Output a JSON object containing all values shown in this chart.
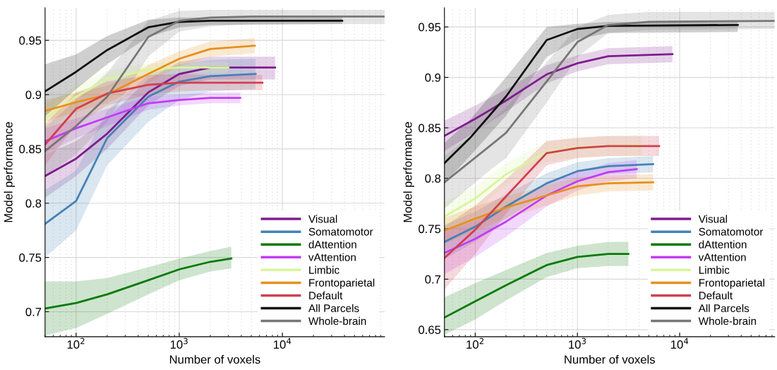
{
  "chart_data": [
    {
      "type": "line",
      "xlabel": "Number of voxels",
      "ylabel": "Model performance",
      "log": "x",
      "grid": true,
      "legend": "bottom right",
      "xlim": [
        50,
        98000
      ],
      "xticks": [
        {
          "value": 100,
          "label": "10$^{2}$"
        },
        {
          "value": 1000,
          "label": "10$^{3}$"
        },
        {
          "value": 10000,
          "label": "10$^{4}$"
        }
      ],
      "ylim": [
        0.677,
        0.98
      ],
      "yticks": [
        0.7,
        0.75,
        0.8,
        0.85,
        0.9,
        0.95
      ],
      "series": [
        {
          "name": "Visual",
          "color": "#7e1e8c",
          "x": [
            50,
            100,
            200,
            500,
            1000,
            2000,
            8500
          ],
          "values": [
            0.825,
            0.841,
            0.864,
            0.902,
            0.919,
            0.925,
            0.925
          ],
          "lower": [
            0.805,
            0.825,
            0.85,
            0.89,
            0.908,
            0.914,
            0.914
          ],
          "upper": [
            0.845,
            0.857,
            0.878,
            0.914,
            0.93,
            0.935,
            0.935
          ]
        },
        {
          "name": "Somatomotor",
          "color": "#4682b4",
          "x": [
            50,
            100,
            200,
            500,
            1000,
            2000,
            5500
          ],
          "values": [
            0.781,
            0.802,
            0.86,
            0.898,
            0.912,
            0.917,
            0.919
          ],
          "lower": [
            0.75,
            0.775,
            0.835,
            0.875,
            0.895,
            0.903,
            0.905
          ],
          "upper": [
            0.812,
            0.83,
            0.885,
            0.918,
            0.928,
            0.932,
            0.933
          ]
        },
        {
          "name": "dAttention",
          "color": "#0a7a0a",
          "x": [
            50,
            100,
            200,
            500,
            1000,
            2000,
            3200
          ],
          "values": [
            0.703,
            0.708,
            0.716,
            0.729,
            0.739,
            0.746,
            0.749
          ],
          "lower": [
            0.678,
            0.685,
            0.698,
            0.716,
            0.729,
            0.737,
            0.74
          ],
          "upper": [
            0.728,
            0.728,
            0.731,
            0.741,
            0.749,
            0.756,
            0.76
          ]
        },
        {
          "name": "vAttention",
          "color": "#c13cf6",
          "x": [
            50,
            100,
            200,
            500,
            1000,
            2000,
            3900
          ],
          "values": [
            0.857,
            0.869,
            0.879,
            0.892,
            0.895,
            0.897,
            0.897
          ],
          "lower": [
            0.845,
            0.86,
            0.871,
            0.886,
            0.89,
            0.892,
            0.892
          ],
          "upper": [
            0.869,
            0.878,
            0.887,
            0.898,
            0.9,
            0.902,
            0.902
          ]
        },
        {
          "name": "Limbic",
          "color": "#d9f59a",
          "x": [
            50,
            100,
            200,
            500,
            1000,
            3000
          ],
          "values": [
            0.878,
            0.898,
            0.914,
            0.923,
            0.925,
            0.925
          ],
          "lower": [
            0.865,
            0.888,
            0.906,
            0.917,
            0.92,
            0.92
          ],
          "upper": [
            0.891,
            0.908,
            0.922,
            0.929,
            0.93,
            0.93
          ]
        },
        {
          "name": "Frontoparietal",
          "color": "#e6901e",
          "x": [
            50,
            100,
            200,
            500,
            1000,
            2000,
            5400
          ],
          "values": [
            0.885,
            0.893,
            0.9,
            0.919,
            0.933,
            0.942,
            0.945
          ],
          "lower": [
            0.875,
            0.884,
            0.892,
            0.911,
            0.926,
            0.935,
            0.938
          ],
          "upper": [
            0.895,
            0.902,
            0.908,
            0.927,
            0.94,
            0.949,
            0.952
          ]
        },
        {
          "name": "Default",
          "color": "#d04050",
          "x": [
            50,
            100,
            200,
            500,
            1000,
            2000,
            6400
          ],
          "values": [
            0.854,
            0.887,
            0.901,
            0.909,
            0.911,
            0.911,
            0.911
          ],
          "lower": [
            0.835,
            0.872,
            0.89,
            0.9,
            0.903,
            0.904,
            0.904
          ],
          "upper": [
            0.873,
            0.902,
            0.912,
            0.918,
            0.919,
            0.918,
            0.918
          ]
        },
        {
          "name": "All Parcels",
          "color": "#111111",
          "x": [
            50,
            100,
            200,
            500,
            1000,
            2000,
            38000
          ],
          "values": [
            0.903,
            0.921,
            0.941,
            0.962,
            0.967,
            0.968,
            0.968
          ],
          "lower": [
            0.88,
            0.905,
            0.928,
            0.953,
            0.962,
            0.964,
            0.965
          ],
          "upper": [
            0.928,
            0.937,
            0.954,
            0.969,
            0.971,
            0.971,
            0.971
          ]
        },
        {
          "name": "Whole-brain",
          "color": "#777777",
          "x": [
            50,
            100,
            200,
            500,
            1000,
            2000,
            5000,
            98000
          ],
          "values": [
            0.848,
            0.871,
            0.898,
            0.953,
            0.968,
            0.971,
            0.972,
            0.972
          ],
          "lower": [
            0.825,
            0.845,
            0.875,
            0.935,
            0.958,
            0.963,
            0.965,
            0.965
          ],
          "upper": [
            0.87,
            0.895,
            0.92,
            0.968,
            0.977,
            0.978,
            0.978,
            0.978
          ]
        }
      ]
    },
    {
      "type": "line",
      "xlabel": "Number of voxels",
      "ylabel": "Model performance",
      "log": "x",
      "grid": true,
      "legend": "bottom right",
      "xlim": [
        50,
        85000
      ],
      "xticks": [
        {
          "value": 100,
          "label": "10$^{2}$"
        },
        {
          "value": 1000,
          "label": "10$^{3}$"
        },
        {
          "value": 10000,
          "label": "10$^{4}$"
        }
      ],
      "ylim": [
        0.643,
        0.969
      ],
      "yticks": [
        0.65,
        0.7,
        0.75,
        0.8,
        0.85,
        0.9,
        0.95
      ],
      "series": [
        {
          "name": "Visual",
          "color": "#7e1e8c",
          "x": [
            50,
            100,
            200,
            500,
            1000,
            2000,
            8500
          ],
          "values": [
            0.842,
            0.859,
            0.877,
            0.903,
            0.914,
            0.921,
            0.923
          ],
          "lower": [
            0.827,
            0.846,
            0.866,
            0.894,
            0.906,
            0.913,
            0.915
          ],
          "upper": [
            0.857,
            0.872,
            0.888,
            0.912,
            0.922,
            0.929,
            0.931
          ]
        },
        {
          "name": "Somatomotor",
          "color": "#4682b4",
          "x": [
            50,
            100,
            200,
            500,
            1000,
            2000,
            5500
          ],
          "values": [
            0.737,
            0.752,
            0.772,
            0.795,
            0.807,
            0.812,
            0.814
          ],
          "lower": [
            0.72,
            0.737,
            0.76,
            0.785,
            0.798,
            0.804,
            0.806
          ],
          "upper": [
            0.754,
            0.767,
            0.784,
            0.805,
            0.816,
            0.82,
            0.822
          ]
        },
        {
          "name": "dAttention",
          "color": "#0a7a0a",
          "x": [
            50,
            100,
            200,
            500,
            1000,
            2000,
            3150
          ],
          "values": [
            0.662,
            0.678,
            0.694,
            0.714,
            0.722,
            0.725,
            0.725
          ],
          "lower": [
            0.645,
            0.66,
            0.679,
            0.702,
            0.711,
            0.713,
            0.713
          ],
          "upper": [
            0.682,
            0.696,
            0.709,
            0.726,
            0.733,
            0.737,
            0.737
          ]
        },
        {
          "name": "vAttention",
          "color": "#c13cf6",
          "x": [
            50,
            100,
            200,
            500,
            1000,
            2000,
            3800
          ],
          "values": [
            0.726,
            0.74,
            0.757,
            0.783,
            0.797,
            0.806,
            0.809
          ],
          "lower": [
            0.705,
            0.722,
            0.742,
            0.772,
            0.788,
            0.797,
            0.8
          ],
          "upper": [
            0.747,
            0.758,
            0.772,
            0.794,
            0.806,
            0.815,
            0.818
          ]
        },
        {
          "name": "Limbic",
          "color": "#d9f59a",
          "x": [
            50,
            100,
            200,
            500,
            1000,
            4300
          ],
          "values": [
            0.762,
            0.78,
            0.804,
            0.826,
            0.831,
            0.833
          ],
          "lower": [
            0.748,
            0.768,
            0.793,
            0.816,
            0.821,
            0.823
          ],
          "upper": [
            0.776,
            0.792,
            0.815,
            0.836,
            0.841,
            0.843
          ]
        },
        {
          "name": "Frontoparietal",
          "color": "#e6901e",
          "x": [
            50,
            100,
            200,
            500,
            1000,
            2000,
            5500
          ],
          "values": [
            0.748,
            0.76,
            0.771,
            0.783,
            0.792,
            0.795,
            0.796
          ],
          "lower": [
            0.735,
            0.748,
            0.76,
            0.773,
            0.783,
            0.787,
            0.788
          ],
          "upper": [
            0.761,
            0.772,
            0.782,
            0.793,
            0.801,
            0.803,
            0.804
          ]
        },
        {
          "name": "Default",
          "color": "#d04050",
          "x": [
            50,
            100,
            200,
            500,
            1000,
            2000,
            6300
          ],
          "values": [
            0.721,
            0.749,
            0.782,
            0.825,
            0.83,
            0.832,
            0.832
          ],
          "lower": [
            0.69,
            0.725,
            0.765,
            0.813,
            0.82,
            0.822,
            0.822
          ],
          "upper": [
            0.752,
            0.773,
            0.799,
            0.837,
            0.84,
            0.842,
            0.842
          ]
        },
        {
          "name": "All Parcels",
          "color": "#111111",
          "x": [
            50,
            89,
            200,
            500,
            1000,
            2000,
            37000
          ],
          "values": [
            0.815,
            0.84,
            0.881,
            0.937,
            0.948,
            0.951,
            0.952
          ],
          "lower": [
            0.795,
            0.822,
            0.862,
            0.92,
            0.938,
            0.944,
            0.945
          ],
          "upper": [
            0.835,
            0.858,
            0.9,
            0.95,
            0.953,
            0.955,
            0.955
          ]
        },
        {
          "name": "Whole-brain",
          "color": "#777777",
          "x": [
            50,
            147,
            200,
            500,
            1000,
            2000,
            5000,
            85000
          ],
          "values": [
            0.796,
            0.834,
            0.845,
            0.896,
            0.935,
            0.952,
            0.955,
            0.956
          ],
          "lower": [
            0.77,
            0.81,
            0.82,
            0.875,
            0.92,
            0.944,
            0.947,
            0.948
          ],
          "upper": [
            0.822,
            0.858,
            0.87,
            0.915,
            0.95,
            0.962,
            0.965,
            0.965
          ]
        }
      ]
    }
  ]
}
